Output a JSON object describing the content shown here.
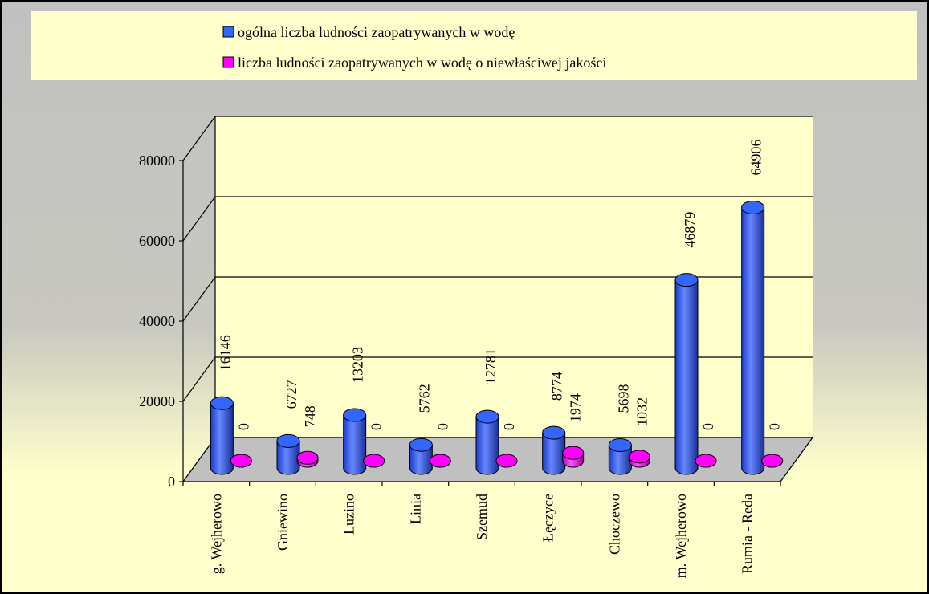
{
  "chart_data": {
    "type": "bar3d",
    "categories": [
      "g. Wejherowo",
      "Gniewino",
      "Luzino",
      "Linia",
      "Szemud",
      "Łęczyce",
      "Choczewo",
      "m. Wejherowo",
      "Rumia - Reda"
    ],
    "series": [
      {
        "name": "ogólna liczba ludności zaopatrywanych w wodę",
        "color": "#3366ff",
        "values": [
          16146,
          6727,
          13203,
          5762,
          12781,
          8774,
          5698,
          46879,
          64906
        ]
      },
      {
        "name": "liczba ludności zaopatrywanych w wodę o niewłaściwej jakości",
        "color": "#ff00ff",
        "values": [
          0,
          748,
          0,
          0,
          0,
          1974,
          1032,
          0,
          0
        ]
      }
    ],
    "ylim": [
      0,
      80000
    ],
    "yticks": [
      0,
      20000,
      40000,
      60000,
      80000
    ],
    "grid": true,
    "legend": "top"
  }
}
